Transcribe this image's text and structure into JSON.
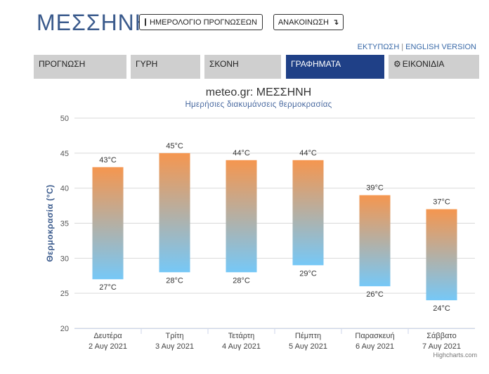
{
  "header": {
    "city": "ΜΕΣΣΗΝΗ",
    "calendar_label": "ΗΜΕΡΟΛΟΓΙΟ ΠΡΟΓΝΩΣΕΩΝ",
    "announce_label": "ΑΝΑΚΟΙΝΩΣΗ",
    "print_link": "ΕΚΤΥΠΩΣΗ",
    "link_separator": "|",
    "english_link": "ENGLISH VERSION"
  },
  "tabs": [
    {
      "label": "ΠΡΟΓΝΩΣΗ",
      "active": false
    },
    {
      "label": "ΓΥΡΗ",
      "active": false
    },
    {
      "label": "ΣΚΟΝΗ",
      "active": false
    },
    {
      "label": "ΓΡΑΦΗΜΑΤΑ",
      "active": true
    },
    {
      "label": "ΕΙΚΟΝΙΔΙΑ",
      "active": false
    }
  ],
  "colors": {
    "bar_top": "#f5964f",
    "bar_bottom": "#76c8f7",
    "grid": "#d9d9d9",
    "active_tab": "#1f4087"
  },
  "chart_data": {
    "type": "columnrange",
    "title": "meteo.gr: ΜΕΣΣΗΝΗ",
    "subtitle": "Ημερήσιες διακυμάνσεις θερμοκρασίας",
    "ylabel": "Θερμοκρασία (°C)",
    "ylim": [
      20,
      50
    ],
    "yticks": [
      20,
      25,
      30,
      35,
      40,
      45,
      50
    ],
    "unit": "°C",
    "credit": "Highcharts.com",
    "categories": [
      {
        "day": "Δευτέρα",
        "date": "2 Αυγ 2021"
      },
      {
        "day": "Τρίτη",
        "date": "3 Αυγ 2021"
      },
      {
        "day": "Τετάρτη",
        "date": "4 Αυγ 2021"
      },
      {
        "day": "Πέμπτη",
        "date": "5 Αυγ 2021"
      },
      {
        "day": "Παρασκευή",
        "date": "6 Αυγ 2021"
      },
      {
        "day": "Σάββατο",
        "date": "7 Αυγ 2021"
      }
    ],
    "low": [
      27,
      28,
      28,
      29,
      26,
      24
    ],
    "high": [
      43,
      45,
      44,
      44,
      39,
      37
    ]
  }
}
